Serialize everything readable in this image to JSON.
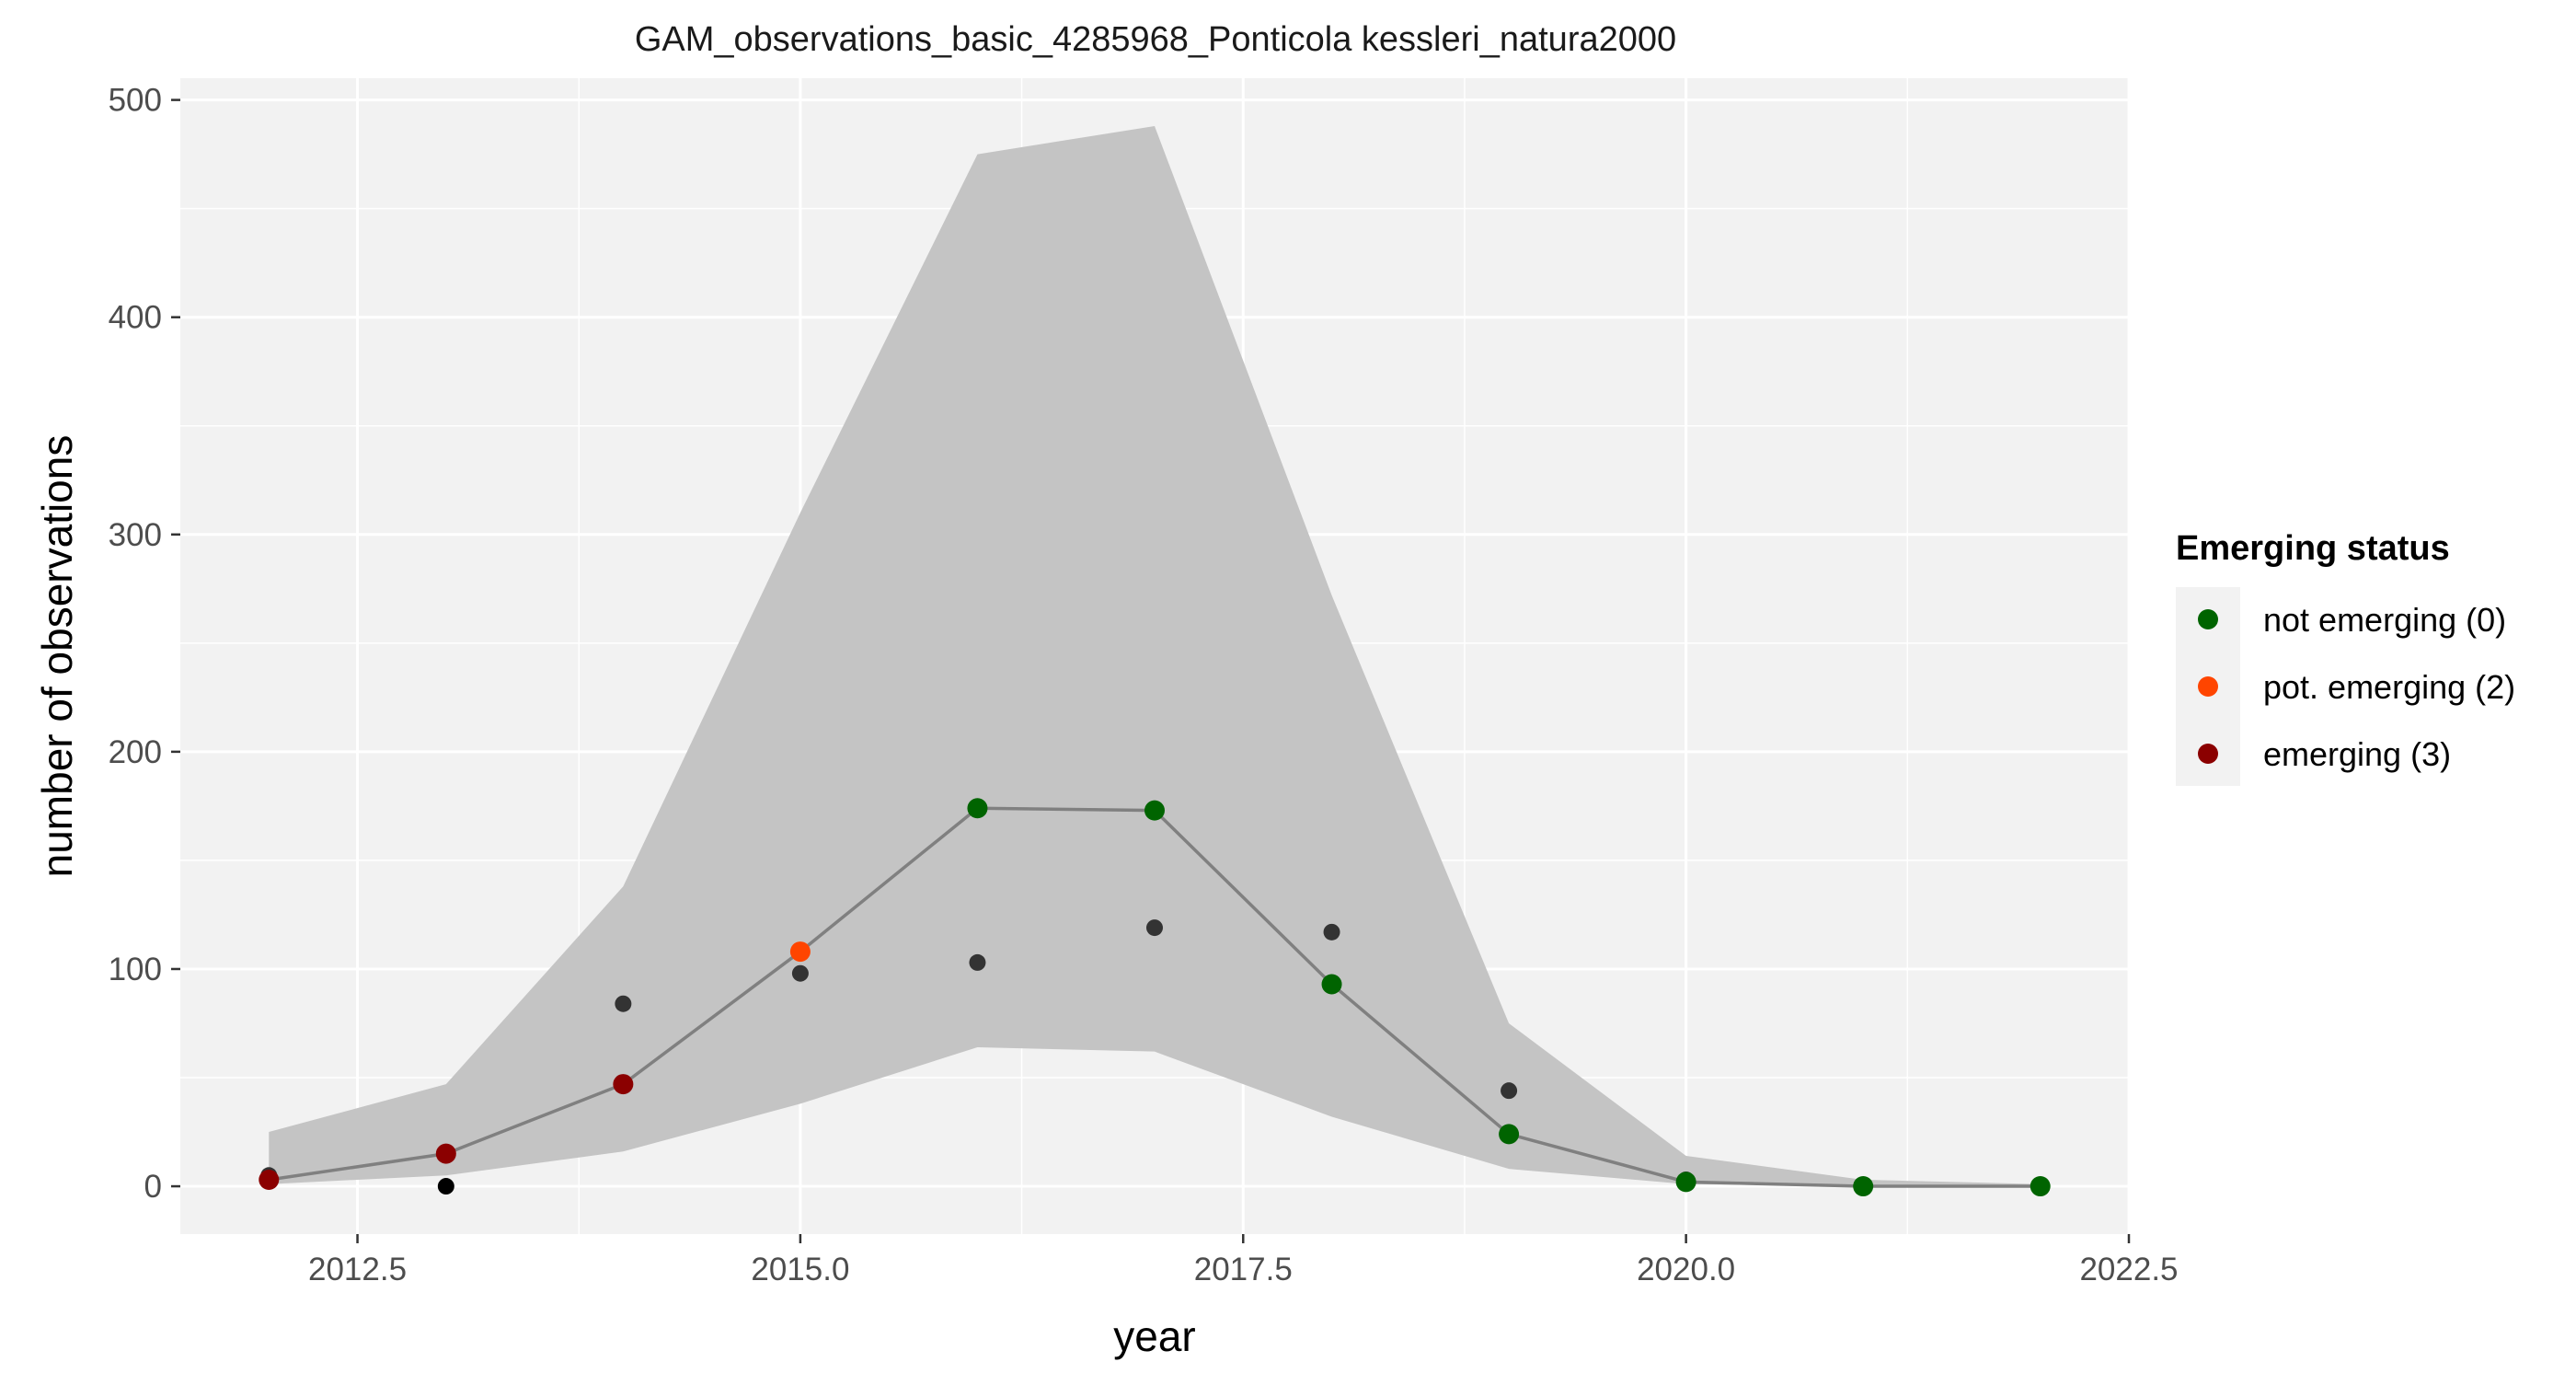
{
  "chart_data": {
    "type": "line",
    "title": "GAM_observations_basic_4285968_Ponticola kessleri_natura2000",
    "xlabel": "year",
    "ylabel": "number of observations",
    "xlim": [
      2011.5,
      2022.5
    ],
    "ylim": [
      -22,
      510
    ],
    "x_ticks": [
      2012.5,
      2015.0,
      2017.5,
      2020.0,
      2022.5
    ],
    "x_tick_labels": [
      "2012.5",
      "2015.0",
      "2017.5",
      "2020.0",
      "2022.5"
    ],
    "y_ticks": [
      0,
      100,
      200,
      300,
      400,
      500
    ],
    "y_tick_labels": [
      "0",
      "100",
      "200",
      "300",
      "400",
      "500"
    ],
    "grid": true,
    "legend": {
      "title": "Emerging status",
      "placement": "right",
      "entries": [
        {
          "label": "not emerging (0)",
          "color": "#006400"
        },
        {
          "label": "pot. emerging (2)",
          "color": "#FF4500"
        },
        {
          "label": "emerging (3)",
          "color": "#8B0000"
        }
      ]
    },
    "colors": {
      "panel_background": "#F2F2F2",
      "grid": "#FFFFFF",
      "ribbon": "#C4C4C4",
      "fit_line": "#808080",
      "observed_point": "#333333",
      "observed_zero_point": "#000000"
    },
    "years": [
      2012,
      2013,
      2014,
      2015,
      2016,
      2017,
      2018,
      2019,
      2020,
      2021,
      2022
    ],
    "series": [
      {
        "name": "fit",
        "values": [
          3,
          15,
          47,
          108,
          174,
          173,
          93,
          24,
          2,
          0,
          0
        ],
        "status": [
          "emerging (3)",
          "emerging (3)",
          "emerging (3)",
          "pot. emerging (2)",
          "not emerging (0)",
          "not emerging (0)",
          "not emerging (0)",
          "not emerging (0)",
          "not emerging (0)",
          "not emerging (0)",
          "not emerging (0)"
        ]
      },
      {
        "name": "lower",
        "values": [
          1,
          5,
          16,
          38,
          64,
          62,
          32,
          8,
          1,
          0,
          0
        ]
      },
      {
        "name": "upper",
        "values": [
          25,
          47,
          138,
          310,
          475,
          488,
          272,
          75,
          14,
          3,
          1
        ]
      },
      {
        "name": "observed",
        "values": [
          5,
          0,
          84,
          98,
          103,
          119,
          117,
          44,
          3,
          0,
          0
        ]
      }
    ]
  }
}
